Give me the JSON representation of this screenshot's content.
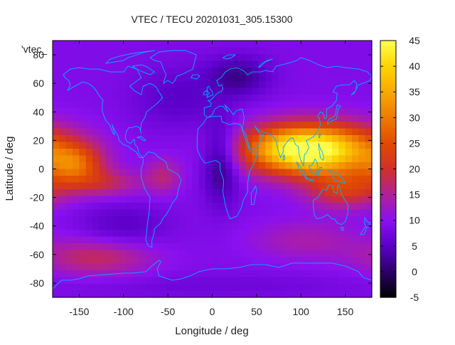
{
  "chart_data": {
    "type": "heatmap",
    "title": "VTEC / TECU 20201031_305.15300",
    "xlabel": "Longitude / deg",
    "ylabel": "Latitude / deg",
    "series_key": "'vtec_",
    "xlim": [
      -180,
      180
    ],
    "ylim": [
      -90,
      90
    ],
    "xticks": [
      -150,
      -100,
      -50,
      0,
      50,
      100,
      150
    ],
    "yticks": [
      -80,
      -60,
      -40,
      -20,
      0,
      20,
      40,
      60,
      80
    ],
    "colorbar": {
      "min": -5,
      "max": 45,
      "ticks": [
        -5,
        0,
        5,
        10,
        15,
        20,
        25,
        30,
        35,
        40,
        45
      ],
      "palette": [
        [
          -5,
          "#000000"
        ],
        [
          0,
          "#2a0066"
        ],
        [
          5,
          "#5a00c8"
        ],
        [
          10,
          "#8a10f0"
        ],
        [
          15,
          "#b0209a"
        ],
        [
          20,
          "#d0302a"
        ],
        [
          25,
          "#e04a00"
        ],
        [
          30,
          "#ee7a00"
        ],
        [
          35,
          "#f8a800"
        ],
        [
          40,
          "#fcd400"
        ],
        [
          45,
          "#ffff50"
        ]
      ]
    },
    "background_value": 9,
    "features": [
      {
        "lon": 125,
        "lat": 13,
        "value": 29,
        "slon": 52,
        "slat": 13
      },
      {
        "lon": 85,
        "lat": 14,
        "value": 15,
        "slon": 40,
        "slat": 11
      },
      {
        "lon": 150,
        "lat": -15,
        "value": 12,
        "slon": 30,
        "slat": 9
      },
      {
        "lon": -155,
        "lat": 3,
        "value": 15,
        "slon": 22,
        "slat": 10
      },
      {
        "lon": -120,
        "lat": -10,
        "value": 8,
        "slon": 30,
        "slat": 7
      },
      {
        "lon": -55,
        "lat": -5,
        "value": 7,
        "slon": 14,
        "slat": 9
      },
      {
        "lon": -130,
        "lat": -62,
        "value": 9,
        "slon": 45,
        "slat": 9
      },
      {
        "lon": 105,
        "lat": -50,
        "value": 5,
        "slon": 45,
        "slat": 10
      },
      {
        "lon": 10,
        "lat": 5,
        "value": -9,
        "slon": 14,
        "slat": 20
      },
      {
        "lon": 30,
        "lat": 65,
        "value": -7,
        "slon": 25,
        "slat": 10
      },
      {
        "lon": -40,
        "lat": 50,
        "value": -4,
        "slon": 35,
        "slat": 15
      },
      {
        "lon": -100,
        "lat": -40,
        "value": -4,
        "slon": 35,
        "slat": 12
      },
      {
        "lon": 0,
        "lat": -82,
        "value": -2,
        "slon": 120,
        "slat": 6
      }
    ]
  }
}
